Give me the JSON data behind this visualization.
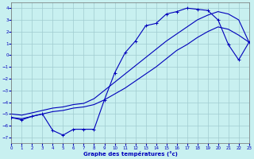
{
  "xlabel": "Graphe des températures (°c)",
  "background_color": "#c8f0f0",
  "grid_color": "#a0ccd0",
  "line_color": "#0000bb",
  "xlim": [
    0,
    23
  ],
  "ylim": [
    -7.5,
    4.5
  ],
  "yticks": [
    4,
    3,
    2,
    1,
    0,
    -1,
    -2,
    -3,
    -4,
    -5,
    -6,
    -7
  ],
  "xticks": [
    0,
    1,
    2,
    3,
    4,
    5,
    6,
    7,
    8,
    9,
    10,
    11,
    12,
    13,
    14,
    15,
    16,
    17,
    18,
    19,
    20,
    21,
    22,
    23
  ],
  "line1_x": [
    0,
    1,
    2,
    3,
    4,
    5,
    6,
    7,
    8,
    9,
    10,
    11,
    12,
    13,
    14,
    15,
    16,
    17,
    18,
    19,
    20,
    21,
    22,
    23
  ],
  "line1_y": [
    -5.3,
    -5.5,
    -5.2,
    -5.0,
    -6.4,
    -6.8,
    -6.3,
    -6.3,
    -6.3,
    -3.8,
    -1.5,
    0.2,
    1.2,
    2.5,
    2.7,
    3.5,
    3.7,
    4.0,
    3.9,
    3.8,
    3.0,
    0.9,
    -0.4,
    1.1
  ],
  "line2_x": [
    0,
    1,
    2,
    3,
    4,
    5,
    6,
    7,
    8,
    9,
    10,
    11,
    12,
    13,
    14,
    15,
    16,
    17,
    18,
    19,
    20,
    21,
    22,
    23
  ],
  "line2_y": [
    -5.3,
    -5.4,
    -5.2,
    -5.0,
    -4.8,
    -4.7,
    -4.5,
    -4.4,
    -4.2,
    -3.8,
    -3.3,
    -2.8,
    -2.2,
    -1.6,
    -1.0,
    -0.3,
    0.4,
    0.9,
    1.5,
    2.0,
    2.4,
    2.2,
    1.7,
    1.1
  ],
  "line3_x": [
    0,
    1,
    2,
    3,
    4,
    5,
    6,
    7,
    8,
    9,
    10,
    11,
    12,
    13,
    14,
    15,
    16,
    17,
    18,
    19,
    20,
    21,
    22,
    23
  ],
  "line3_y": [
    -5.0,
    -5.1,
    -4.9,
    -4.7,
    -4.5,
    -4.4,
    -4.2,
    -4.1,
    -3.7,
    -3.0,
    -2.3,
    -1.6,
    -0.9,
    -0.2,
    0.5,
    1.2,
    1.8,
    2.4,
    3.0,
    3.4,
    3.7,
    3.5,
    3.0,
    1.1
  ]
}
